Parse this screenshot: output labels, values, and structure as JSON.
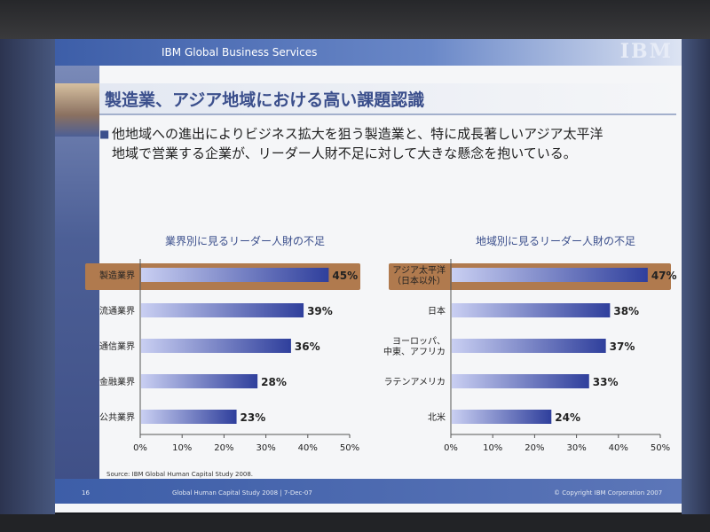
{
  "slide": {
    "header_text": "IBM Global Business Services",
    "logo": "IBM",
    "title": "製造業、アジア地域における高い課題認識",
    "bullet_line1": "他地域への進出によりビジネス拡大を狙う製造業と、特に成長著しいアジア太平洋",
    "bullet_line2": "地域で営業する企業が、リーダー人財不足に対して大きな懸念を抱いている。",
    "source": "Source: IBM Global Human Capital Study 2008.",
    "page_number": "16",
    "footer_center": "Global Human Capital Study 2008 | 7-Dec-07",
    "copyright": "© Copyright IBM Corporation 2007"
  },
  "colors": {
    "bar": "#2f3f9c",
    "bar_light": "#c9cff2",
    "highlight": "#b07a4e",
    "accent": "#3b4f8c"
  },
  "chart_data": [
    {
      "type": "bar",
      "orientation": "horizontal",
      "title": "業界別に見るリーダー人財の不足",
      "categories": [
        "製造業界",
        "流通業界",
        "通信業界",
        "金融業界",
        "公共業界"
      ],
      "values": [
        45,
        39,
        36,
        28,
        23
      ],
      "highlight_index": 0,
      "xlim": [
        0,
        50
      ],
      "ticks": [
        "0%",
        "10%",
        "20%",
        "30%",
        "40%",
        "50%"
      ],
      "unit": "%"
    },
    {
      "type": "bar",
      "orientation": "horizontal",
      "title": "地域別に見るリーダー人財の不足",
      "categories": [
        "アジア太平洋\n（日本以外）",
        "日本",
        "ヨーロッパ、\n中東、アフリカ",
        "ラテンアメリカ",
        "北米"
      ],
      "values": [
        47,
        38,
        37,
        33,
        24
      ],
      "highlight_index": 0,
      "xlim": [
        0,
        50
      ],
      "ticks": [
        "0%",
        "10%",
        "20%",
        "30%",
        "40%",
        "50%"
      ],
      "unit": "%"
    }
  ]
}
